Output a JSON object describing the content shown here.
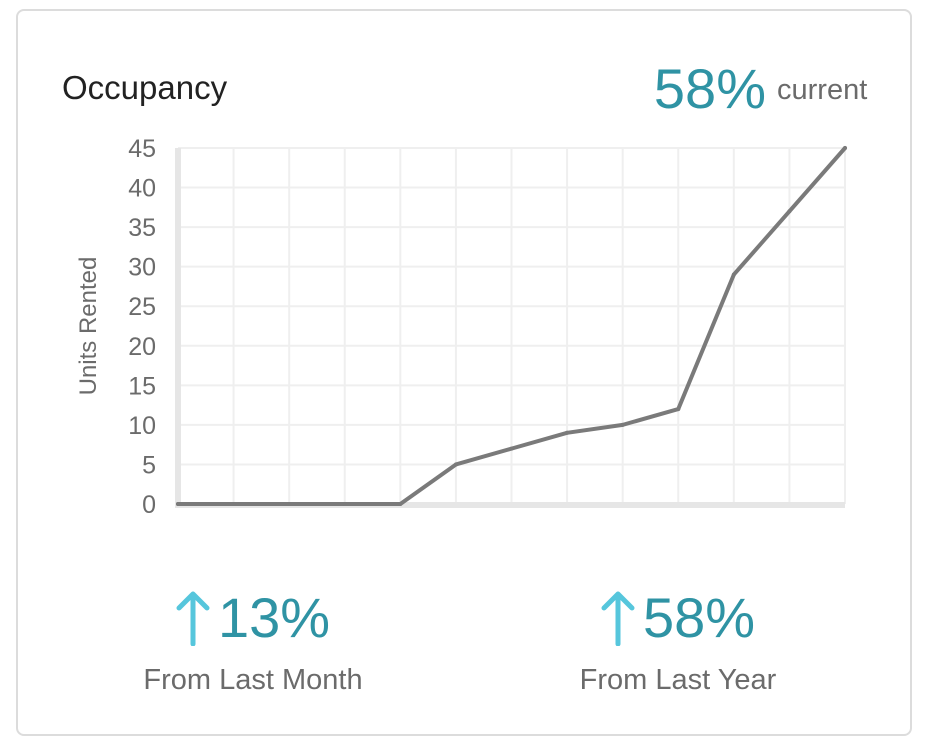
{
  "card": {
    "title": "Occupancy",
    "current_value": "58%",
    "current_label": "current"
  },
  "stats": [
    {
      "value": "13%",
      "label": "From Last Month",
      "direction": "up",
      "icon": "arrow-up-icon"
    },
    {
      "value": "58%",
      "label": "From Last Year",
      "direction": "up",
      "icon": "arrow-up-icon"
    }
  ],
  "colors": {
    "accent": "#2f93a4",
    "arrow": "#56c6dc",
    "line": "#7a7a7a",
    "grid": "#efefef",
    "axis": "#e6e6e6",
    "text_muted": "#6b6b6b"
  },
  "chart_data": {
    "type": "line",
    "title": "",
    "xlabel": "",
    "ylabel": "Units Rented",
    "ylim": [
      0,
      45
    ],
    "yticks": [
      0,
      5,
      10,
      15,
      20,
      25,
      30,
      35,
      40,
      45
    ],
    "grid": true,
    "series": [
      {
        "values": [
          0,
          0,
          0,
          0,
          0,
          5,
          7,
          9,
          10,
          12,
          29,
          37,
          45
        ]
      }
    ]
  }
}
